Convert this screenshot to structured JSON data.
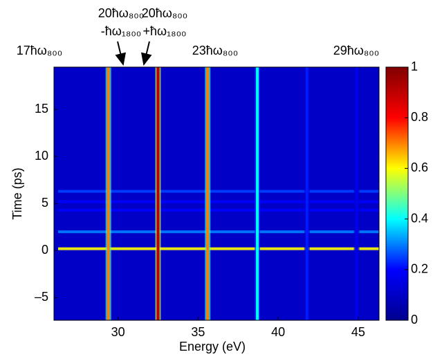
{
  "chart_data": {
    "type": "heatmap",
    "xlabel": "Energy (eV)",
    "ylabel": "Time (ps)",
    "xlim": [
      26,
      46.3
    ],
    "ylim": [
      -7.4,
      19.5
    ],
    "xticks": [
      30,
      35,
      40,
      45
    ],
    "yticks": [
      {
        "value": -5,
        "label": "–5"
      },
      0,
      5,
      10,
      15
    ],
    "clim": [
      0,
      1
    ],
    "cticks": [
      0,
      0.2,
      0.4,
      0.6,
      0.8,
      1
    ],
    "colormap": [
      "#00008f",
      "#0000ff",
      "#00ffff",
      "#ffff00",
      "#ff0000",
      "#800000"
    ],
    "background": 0.1,
    "vertical_lines": {
      "x": [
        29.4,
        32.5,
        35.6,
        38.7,
        41.8,
        44.9
      ],
      "values": [
        0.7,
        0.9,
        0.7,
        0.4,
        0.22,
        0.17
      ]
    },
    "horizontal_lines": {
      "y": [
        0.2,
        2,
        4.3,
        5.2,
        6.3
      ],
      "values": [
        0.6,
        0.3,
        0.2,
        0.2,
        0.25
      ]
    },
    "annotations": [
      "17ħω₈₀₀",
      "20ħω₈₀₀",
      "-ħω₁₈₀₀",
      "20ħω₈₀₀",
      "+ħω₁₈₀₀",
      "23ħω₈₀₀",
      "29ħω₈₀₀"
    ]
  }
}
